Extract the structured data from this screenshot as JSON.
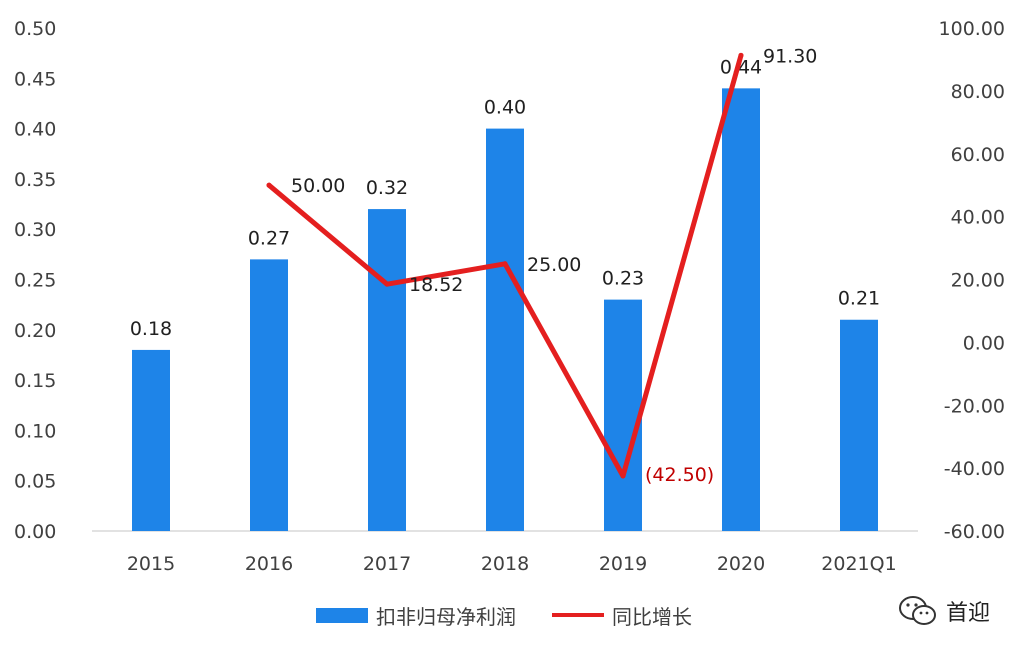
{
  "chart_data": {
    "type": "bar",
    "categories": [
      "2015",
      "2016",
      "2017",
      "2018",
      "2019",
      "2020",
      "2021Q1"
    ],
    "series": [
      {
        "name": "扣非归母净利润",
        "type": "bar",
        "axis": "left",
        "values": [
          0.18,
          0.27,
          0.32,
          0.4,
          0.23,
          0.44,
          0.21
        ],
        "labels": [
          "0.18",
          "0.27",
          "0.32",
          "0.40",
          "0.23",
          "0.44",
          "0.21"
        ],
        "color": "#1e84e8"
      },
      {
        "name": "同比增长",
        "type": "line",
        "axis": "right",
        "values": [
          null,
          50.0,
          18.52,
          25.0,
          -42.5,
          91.3,
          null
        ],
        "labels": [
          "",
          "50.00",
          "18.52",
          "25.00",
          "(42.50)",
          "91.30",
          ""
        ],
        "color": "#e41f1f"
      }
    ],
    "left_axis": {
      "ylim": [
        0,
        0.5
      ],
      "ticks": [
        "0.00",
        "0.05",
        "0.10",
        "0.15",
        "0.20",
        "0.25",
        "0.30",
        "0.35",
        "0.40",
        "0.45",
        "0.50"
      ]
    },
    "right_axis": {
      "ylim": [
        -60,
        100
      ],
      "ticks": [
        "-60.00",
        "-40.00",
        "-20.00",
        "0.00",
        "20.00",
        "40.00",
        "60.00",
        "80.00",
        "100.00"
      ]
    },
    "grid": false,
    "legend_position": "bottom"
  },
  "watermark": {
    "text": "首迎",
    "icon": "wechat-icon"
  }
}
